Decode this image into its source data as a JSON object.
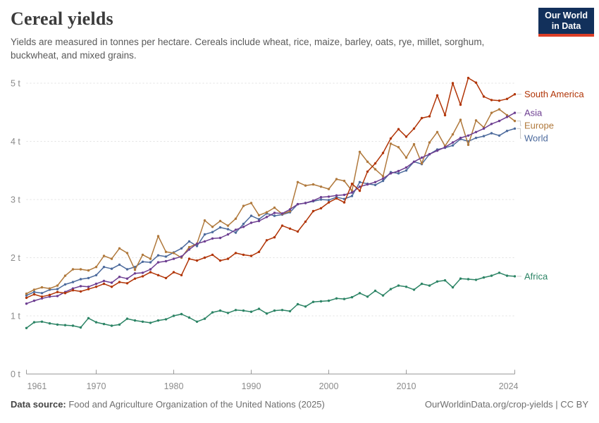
{
  "header": {
    "title": "Cereal yields",
    "subtitle": "Yields are measured in tonnes per hectare. Cereals include wheat, rice, maize, barley, oats, rye, millet, sorghum, buckwheat, and mixed grains.",
    "logo": {
      "line1": "Our World",
      "line2": "in Data",
      "bg_color": "#12305b",
      "accent_color": "#dc3e26"
    }
  },
  "chart_data": {
    "type": "line",
    "title": "Cereal yields",
    "unit": "t",
    "x_start": 1961,
    "x_end": 2024,
    "x_ticks": [
      1961,
      1970,
      1980,
      1990,
      2000,
      2010,
      2024
    ],
    "y_ticks": [
      {
        "value": 0,
        "label": "0 t"
      },
      {
        "value": 1,
        "label": "1 t"
      },
      {
        "value": 2,
        "label": "2 t"
      },
      {
        "value": 3,
        "label": "3 t"
      },
      {
        "value": 4,
        "label": "4 t"
      },
      {
        "value": 5,
        "label": "5 t"
      }
    ],
    "ylim": [
      0,
      5.28
    ],
    "grid": "dashed-horizontal",
    "legend_position": "right-of-line-ends",
    "series": [
      {
        "name": "South America",
        "color": "#b13507",
        "values": [
          1.31,
          1.37,
          1.33,
          1.36,
          1.41,
          1.39,
          1.44,
          1.42,
          1.46,
          1.5,
          1.55,
          1.5,
          1.58,
          1.56,
          1.64,
          1.68,
          1.75,
          1.7,
          1.65,
          1.75,
          1.7,
          1.98,
          1.95,
          2.0,
          2.05,
          1.95,
          1.98,
          2.08,
          2.05,
          2.03,
          2.1,
          2.3,
          2.35,
          2.55,
          2.5,
          2.45,
          2.62,
          2.8,
          2.85,
          2.95,
          3.02,
          2.95,
          3.27,
          3.15,
          3.48,
          3.62,
          3.8,
          4.05,
          4.21,
          4.08,
          4.22,
          4.4,
          4.43,
          4.79,
          4.45,
          5.0,
          4.63,
          5.09,
          5.01,
          4.77,
          4.71,
          4.7,
          4.73,
          4.81
        ]
      },
      {
        "name": "Asia",
        "color": "#6d3e91",
        "values": [
          1.21,
          1.26,
          1.3,
          1.33,
          1.34,
          1.41,
          1.47,
          1.51,
          1.5,
          1.55,
          1.6,
          1.57,
          1.67,
          1.64,
          1.73,
          1.74,
          1.8,
          1.92,
          1.94,
          1.98,
          2.02,
          2.14,
          2.24,
          2.28,
          2.33,
          2.34,
          2.4,
          2.48,
          2.53,
          2.6,
          2.63,
          2.7,
          2.77,
          2.76,
          2.83,
          2.92,
          2.94,
          2.98,
          3.04,
          3.05,
          3.07,
          3.08,
          3.12,
          3.22,
          3.26,
          3.3,
          3.36,
          3.45,
          3.49,
          3.55,
          3.65,
          3.72,
          3.78,
          3.84,
          3.9,
          3.98,
          4.06,
          4.1,
          4.16,
          4.22,
          4.3,
          4.35,
          4.42,
          4.49
        ]
      },
      {
        "name": "Europe",
        "color": "#b0793c",
        "values": [
          1.38,
          1.45,
          1.49,
          1.47,
          1.52,
          1.69,
          1.8,
          1.8,
          1.78,
          1.84,
          2.03,
          1.98,
          2.16,
          2.08,
          1.79,
          2.05,
          1.98,
          2.37,
          2.1,
          2.08,
          2.0,
          2.18,
          2.24,
          2.64,
          2.53,
          2.63,
          2.55,
          2.67,
          2.89,
          2.94,
          2.73,
          2.78,
          2.86,
          2.75,
          2.8,
          3.3,
          3.24,
          3.26,
          3.22,
          3.18,
          3.35,
          3.32,
          3.15,
          3.82,
          3.65,
          3.52,
          3.4,
          3.96,
          3.9,
          3.72,
          3.95,
          3.62,
          3.98,
          4.16,
          3.92,
          4.12,
          4.37,
          3.94,
          4.36,
          4.24,
          4.49,
          4.55,
          4.45,
          4.35
        ]
      },
      {
        "name": "World",
        "color": "#4c6a9c",
        "values": [
          1.35,
          1.41,
          1.39,
          1.45,
          1.46,
          1.54,
          1.58,
          1.63,
          1.65,
          1.7,
          1.84,
          1.81,
          1.88,
          1.8,
          1.84,
          1.93,
          1.92,
          2.04,
          2.02,
          2.09,
          2.16,
          2.28,
          2.2,
          2.4,
          2.44,
          2.52,
          2.49,
          2.43,
          2.58,
          2.72,
          2.66,
          2.76,
          2.72,
          2.74,
          2.78,
          2.92,
          2.94,
          2.97,
          3.0,
          2.99,
          3.04,
          3.01,
          3.06,
          3.3,
          3.27,
          3.25,
          3.32,
          3.47,
          3.45,
          3.5,
          3.65,
          3.61,
          3.78,
          3.86,
          3.89,
          3.93,
          4.04,
          4.0,
          4.06,
          4.09,
          4.14,
          4.1,
          4.18,
          4.22
        ]
      },
      {
        "name": "Africa",
        "color": "#2c8465",
        "values": [
          0.79,
          0.89,
          0.9,
          0.87,
          0.85,
          0.84,
          0.83,
          0.8,
          0.96,
          0.89,
          0.86,
          0.83,
          0.85,
          0.95,
          0.92,
          0.9,
          0.88,
          0.92,
          0.94,
          1.0,
          1.03,
          0.97,
          0.9,
          0.95,
          1.06,
          1.09,
          1.05,
          1.1,
          1.09,
          1.07,
          1.12,
          1.04,
          1.09,
          1.1,
          1.08,
          1.2,
          1.16,
          1.24,
          1.25,
          1.26,
          1.3,
          1.29,
          1.32,
          1.39,
          1.33,
          1.43,
          1.35,
          1.46,
          1.52,
          1.5,
          1.45,
          1.55,
          1.52,
          1.59,
          1.61,
          1.49,
          1.64,
          1.63,
          1.62,
          1.66,
          1.69,
          1.74,
          1.69,
          1.68
        ]
      }
    ]
  },
  "footer": {
    "datasource_label": "Data source:",
    "datasource_value": " Food and Agriculture Organization of the United Nations (2025)",
    "credit": "OurWorldinData.org/crop-yields | CC BY"
  }
}
